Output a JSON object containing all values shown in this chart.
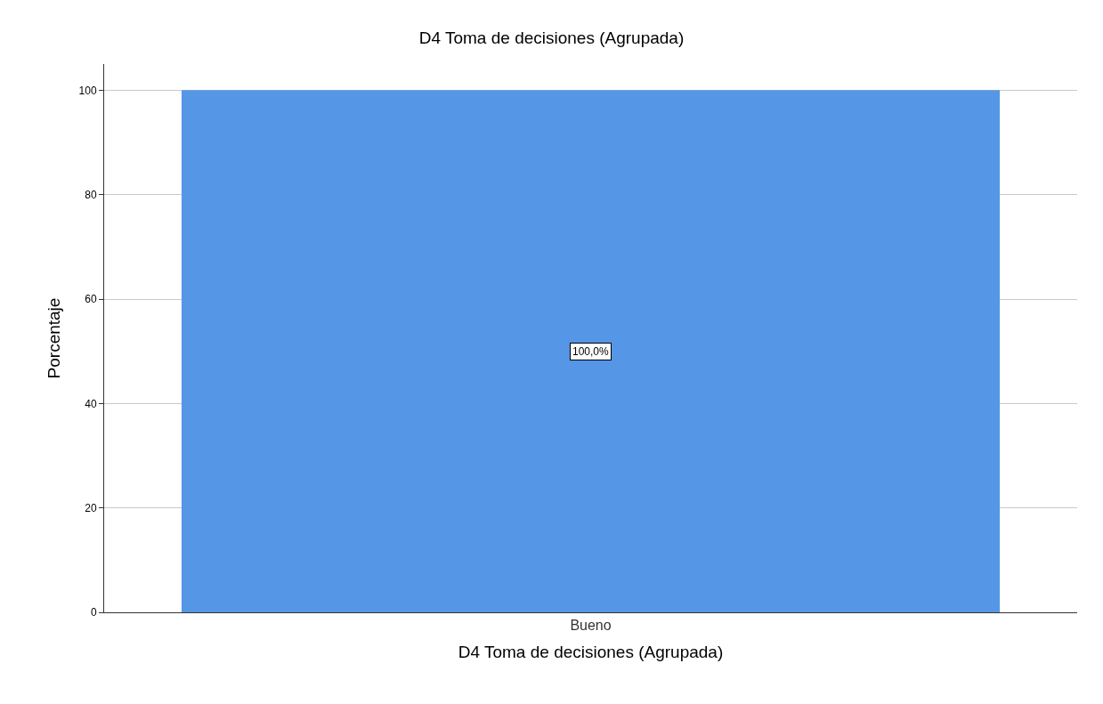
{
  "chart_data": {
    "type": "bar",
    "title": "D4 Toma de decisiones (Agrupada)",
    "xlabel": "D4 Toma de decisiones (Agrupada)",
    "ylabel": "Porcentaje",
    "categories": [
      "Bueno"
    ],
    "values": [
      100
    ],
    "value_labels": [
      "100,0%"
    ],
    "color": "#5596e6",
    "ylim": [
      0,
      105
    ],
    "yticks": [
      0,
      20,
      40,
      60,
      80,
      100
    ],
    "grid": "y"
  }
}
